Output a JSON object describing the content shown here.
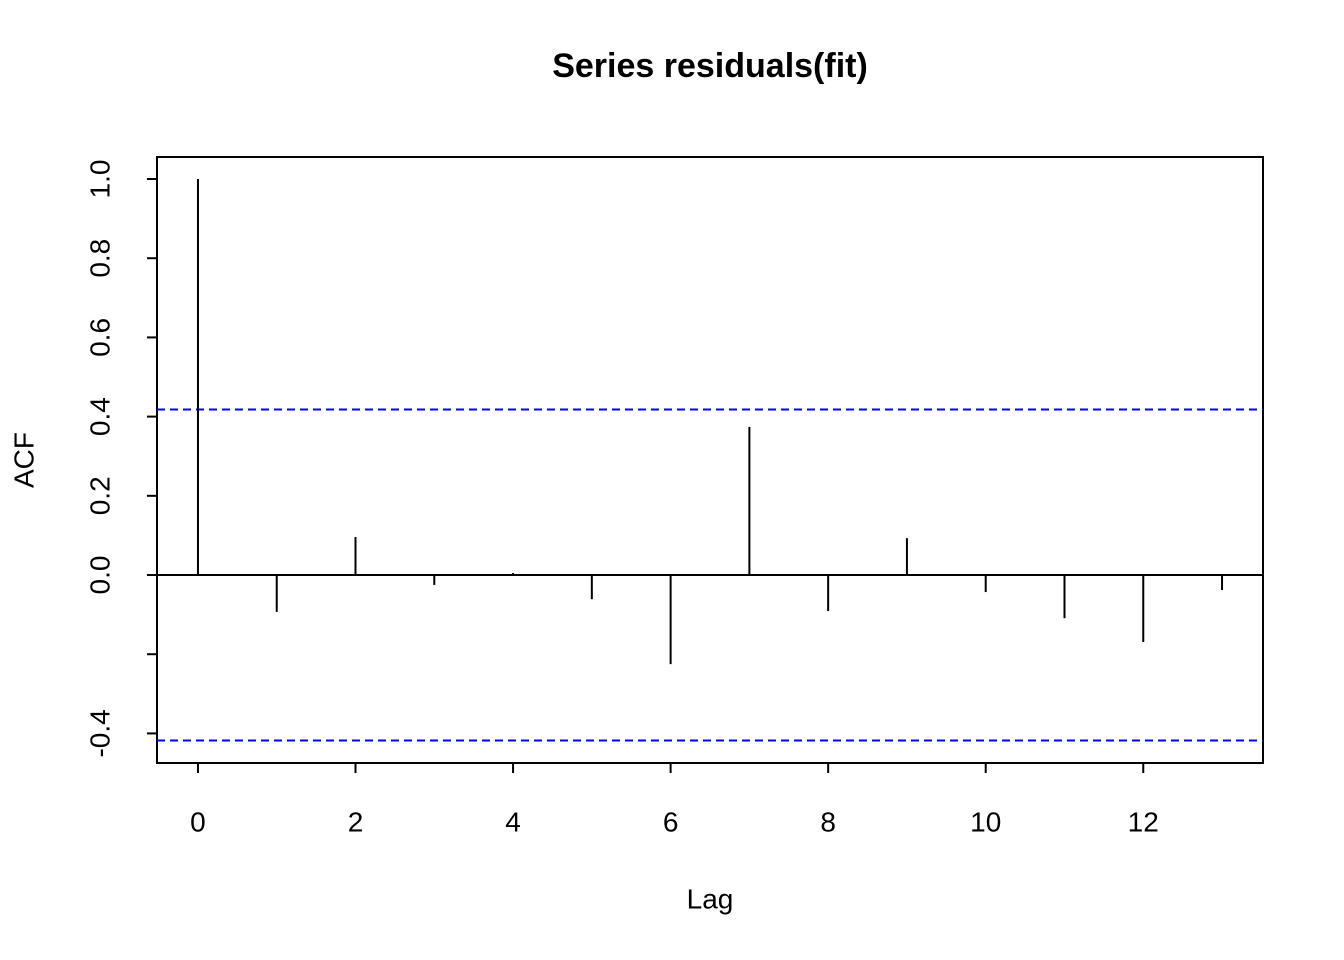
{
  "chart_data": {
    "type": "acf",
    "title": "Series  residuals(fit)",
    "x_label": "Lag",
    "y_label": "ACF",
    "x": [
      0,
      1,
      2,
      3,
      4,
      5,
      6,
      7,
      8,
      9,
      10,
      11,
      12,
      13
    ],
    "values": [
      1.0,
      -0.093,
      0.096,
      -0.025,
      0.005,
      -0.061,
      -0.225,
      0.374,
      -0.091,
      0.093,
      -0.043,
      -0.109,
      -0.169,
      -0.038
    ],
    "color": "#000000",
    "ci_lines": [
      0.418,
      -0.418
    ],
    "ci_color": "#0000ff",
    "xlim": [
      -0.52,
      13.52
    ],
    "xticks": [
      0,
      2,
      4,
      6,
      8,
      10,
      12
    ],
    "ylim": [
      -0.4747,
      1.0556
    ],
    "yticks": [
      {
        "value": -0.4,
        "label": "-0.4"
      },
      {
        "value": -0.2,
        "label": null
      },
      {
        "value": 0,
        "label": "0.0"
      },
      0.2,
      0.4,
      0.6,
      0.8,
      {
        "value": 1,
        "label": "1.0"
      }
    ]
  }
}
